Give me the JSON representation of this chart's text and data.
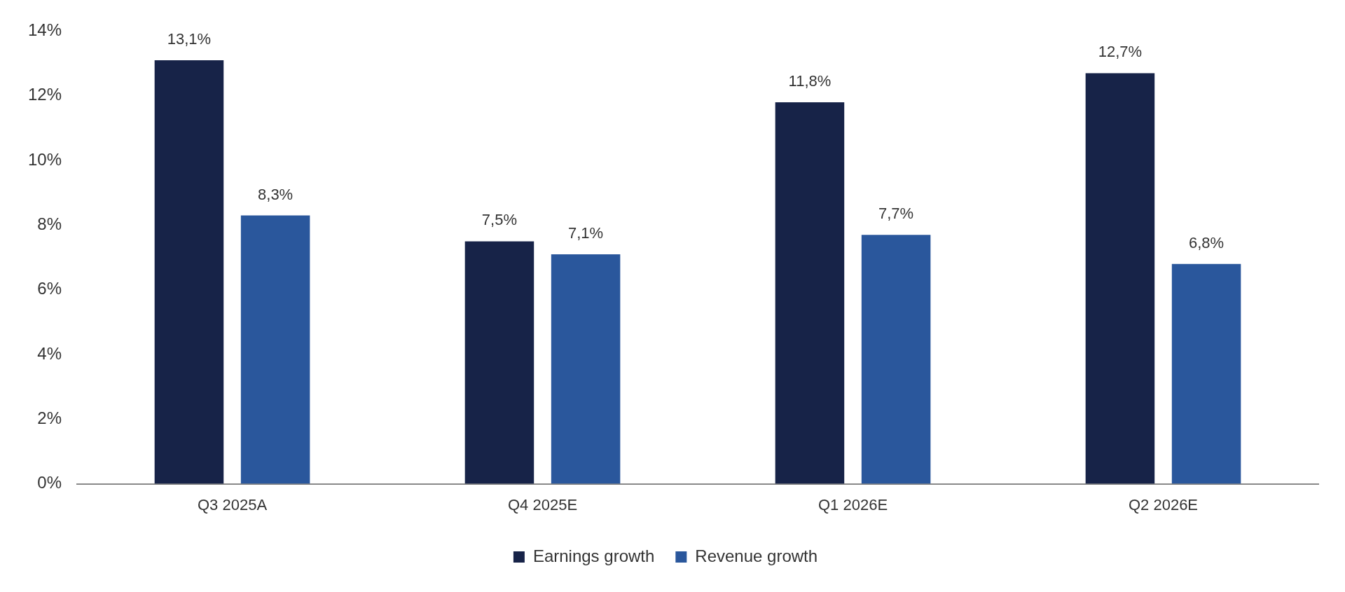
{
  "chart_data": {
    "type": "bar",
    "categories": [
      "Q3 2025A",
      "Q4 2025E",
      "Q1 2026E",
      "Q2 2026E"
    ],
    "series": [
      {
        "name": "Earnings growth",
        "color": "#172348",
        "values": [
          13.1,
          7.5,
          11.8,
          12.7
        ],
        "value_labels": [
          "13,1%",
          "7,5%",
          "11,8%",
          "12,7%"
        ]
      },
      {
        "name": "Revenue growth",
        "color": "#2a579c",
        "values": [
          8.3,
          7.1,
          7.7,
          6.8
        ],
        "value_labels": [
          "8,3%",
          "7,1%",
          "7,7%",
          "6,8%"
        ]
      }
    ],
    "ylim": [
      0,
      14
    ],
    "yticks": [
      {
        "value": 0,
        "label": "0%"
      },
      {
        "value": 2,
        "label": "2%"
      },
      {
        "value": 4,
        "label": "4%"
      },
      {
        "value": 6,
        "label": "6%"
      },
      {
        "value": 8,
        "label": "8%"
      },
      {
        "value": 10,
        "label": "10%"
      },
      {
        "value": 12,
        "label": "12%"
      },
      {
        "value": 14,
        "label": "14%"
      }
    ],
    "grid": false,
    "legend": "bottom"
  }
}
